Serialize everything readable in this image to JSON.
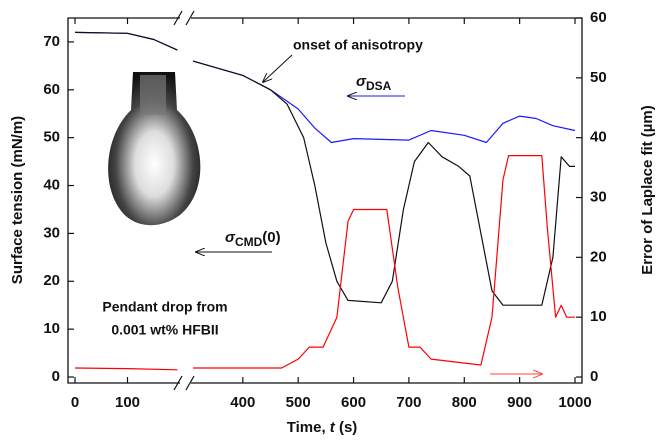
{
  "chart_data": {
    "type": "line",
    "xlabel": {
      "pre": "Time, ",
      "var": "t",
      "post": " (s)"
    },
    "ylabel": "Surface tension (mN/m)",
    "y2label": "Error of Laplace fit (µm)",
    "xlim": [
      [
        0,
        200
      ],
      [
        310,
        1000
      ]
    ],
    "xticks": [
      0,
      100,
      400,
      500,
      600,
      700,
      800,
      900,
      1000
    ],
    "ylim": [
      -1.25,
      75
    ],
    "yticks": [
      0,
      10,
      20,
      30,
      40,
      50,
      60,
      70
    ],
    "y2lim": [
      -1,
      60
    ],
    "y2ticks": [
      0,
      10,
      20,
      30,
      40,
      50,
      60
    ],
    "series": [
      {
        "color": "#1a1aff",
        "axis": "y",
        "x": [
          0,
          100,
          150,
          195,
          250,
          310,
          400,
          450,
          500,
          530,
          560,
          600,
          700,
          740,
          800,
          840,
          870,
          900,
          930,
          960,
          1000
        ],
        "values": [
          72,
          71.8,
          70.5,
          68.3,
          null,
          66,
          63,
          60,
          56,
          52,
          49,
          49.8,
          49.5,
          51.5,
          50.5,
          49,
          53,
          54.5,
          54,
          52.5,
          51.5
        ]
      },
      {
        "color": "#111111",
        "axis": "y",
        "x": [
          0,
          100,
          150,
          195,
          250,
          310,
          400,
          450,
          480,
          510,
          530,
          550,
          570,
          590,
          650,
          670,
          690,
          710,
          735,
          760,
          790,
          810,
          830,
          850,
          870,
          940,
          960,
          975,
          990,
          1000
        ],
        "values": [
          72,
          71.8,
          70.5,
          68.3,
          null,
          66,
          63,
          60,
          57,
          50,
          40,
          28,
          20,
          16,
          15.5,
          20,
          35,
          45,
          49,
          46,
          44,
          42,
          30,
          18,
          15,
          15,
          25,
          46,
          44,
          44
        ]
      },
      {
        "color": "#ff0000",
        "axis": "y2",
        "x": [
          0,
          100,
          195,
          250,
          310,
          470,
          500,
          520,
          545,
          570,
          590,
          600,
          660,
          680,
          700,
          720,
          740,
          830,
          850,
          870,
          880,
          940,
          950,
          965,
          975,
          985,
          1000
        ],
        "values": [
          1.5,
          1.4,
          1.2,
          null,
          1.5,
          1.5,
          3,
          5,
          5,
          10,
          26,
          28,
          28,
          15,
          5,
          5,
          3,
          2,
          10,
          33,
          37,
          37,
          25,
          10,
          12,
          10,
          10
        ]
      }
    ],
    "annotations": {
      "onset": "onset of anisotropy",
      "dsa": {
        "main": "σ",
        "sub": "DSA"
      },
      "cmd": {
        "main": "σ",
        "sub": "CMD",
        "post": "(0)"
      },
      "drop_line1": "Pendant drop from",
      "drop_line2": "0.001 wt% HFBII"
    }
  }
}
